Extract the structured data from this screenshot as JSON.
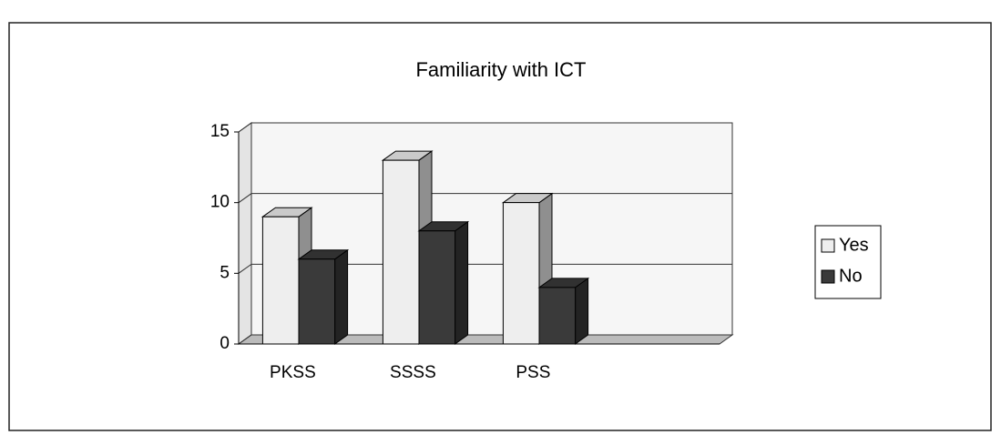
{
  "chart_data": {
    "type": "bar",
    "title": "Familiarity with ICT",
    "categories": [
      "PKSS",
      "SSSS",
      "PSS",
      null
    ],
    "series": [
      {
        "name": "Yes",
        "color": "#eeeeee",
        "values": [
          9,
          13,
          10,
          null
        ]
      },
      {
        "name": "No",
        "color": "#3a3a3a",
        "values": [
          6,
          8,
          4,
          null
        ]
      }
    ],
    "ylim": [
      0,
      15
    ],
    "yticks": [
      0,
      5,
      10,
      15
    ],
    "grid": true,
    "legend": "right"
  }
}
